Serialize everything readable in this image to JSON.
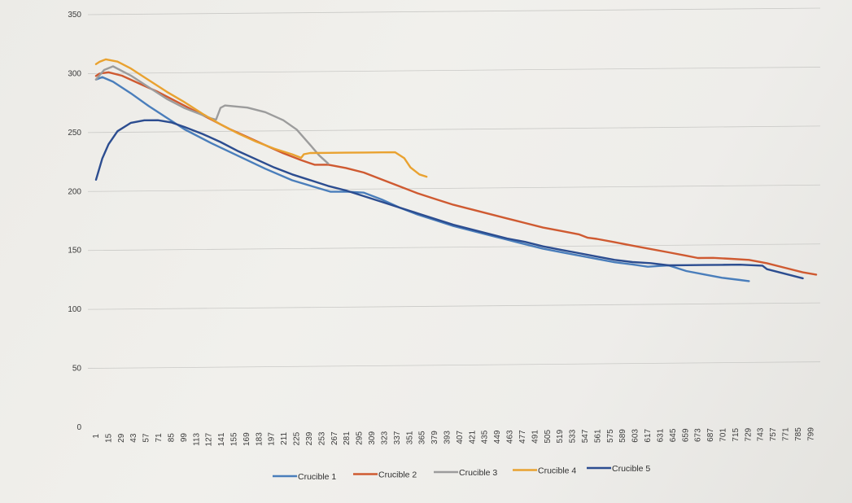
{
  "chart_data": {
    "type": "line",
    "title": "",
    "xlabel": "",
    "ylabel": "",
    "ylim": [
      0,
      350
    ],
    "y_ticks": [
      0,
      50,
      100,
      150,
      200,
      250,
      300,
      350
    ],
    "x_ticks": [
      1,
      15,
      29,
      43,
      57,
      71,
      85,
      99,
      113,
      127,
      141,
      155,
      169,
      183,
      197,
      211,
      225,
      239,
      253,
      267,
      281,
      295,
      309,
      323,
      337,
      351,
      365,
      379,
      393,
      407,
      421,
      435,
      449,
      463,
      477,
      491,
      505,
      519,
      533,
      547,
      561,
      575,
      589,
      603,
      617,
      631,
      645,
      659,
      673,
      687,
      701,
      715,
      729,
      743,
      757,
      771,
      785,
      799
    ],
    "grid": "horizontal",
    "legend_position": "bottom",
    "series": [
      {
        "name": "Crucible 1",
        "color": "#4a7ebb",
        "points": [
          [
            1,
            295
          ],
          [
            8,
            297
          ],
          [
            20,
            293
          ],
          [
            40,
            283
          ],
          [
            60,
            272
          ],
          [
            80,
            262
          ],
          [
            100,
            252
          ],
          [
            130,
            240
          ],
          [
            160,
            229
          ],
          [
            190,
            218
          ],
          [
            220,
            208
          ],
          [
            250,
            201
          ],
          [
            263,
            198
          ],
          [
            280,
            198
          ],
          [
            300,
            197
          ],
          [
            320,
            191
          ],
          [
            340,
            184
          ],
          [
            360,
            178
          ],
          [
            380,
            173
          ],
          [
            400,
            168
          ],
          [
            420,
            164
          ],
          [
            440,
            160
          ],
          [
            460,
            156
          ],
          [
            480,
            152
          ],
          [
            500,
            148
          ],
          [
            520,
            145
          ],
          [
            540,
            142
          ],
          [
            560,
            139
          ],
          [
            580,
            136
          ],
          [
            600,
            134
          ],
          [
            617,
            132
          ],
          [
            640,
            133
          ],
          [
            660,
            128
          ],
          [
            680,
            125
          ],
          [
            700,
            122
          ],
          [
            720,
            120
          ],
          [
            730,
            119
          ]
        ]
      },
      {
        "name": "Crucible 2",
        "color": "#cf5a31",
        "points": [
          [
            1,
            298
          ],
          [
            5,
            300
          ],
          [
            15,
            301
          ],
          [
            30,
            298
          ],
          [
            50,
            291
          ],
          [
            70,
            284
          ],
          [
            90,
            276
          ],
          [
            110,
            268
          ],
          [
            130,
            260
          ],
          [
            150,
            252
          ],
          [
            170,
            245
          ],
          [
            190,
            238
          ],
          [
            210,
            231
          ],
          [
            230,
            225
          ],
          [
            245,
            221
          ],
          [
            260,
            221
          ],
          [
            280,
            218
          ],
          [
            300,
            214
          ],
          [
            320,
            208
          ],
          [
            340,
            202
          ],
          [
            360,
            196
          ],
          [
            380,
            191
          ],
          [
            400,
            186
          ],
          [
            420,
            182
          ],
          [
            440,
            178
          ],
          [
            460,
            174
          ],
          [
            480,
            170
          ],
          [
            500,
            166
          ],
          [
            520,
            163
          ],
          [
            540,
            160
          ],
          [
            550,
            157
          ],
          [
            560,
            156
          ],
          [
            580,
            153
          ],
          [
            600,
            150
          ],
          [
            620,
            147
          ],
          [
            640,
            144
          ],
          [
            660,
            141
          ],
          [
            673,
            139
          ],
          [
            690,
            139
          ],
          [
            710,
            138
          ],
          [
            730,
            137
          ],
          [
            750,
            134
          ],
          [
            770,
            130
          ],
          [
            790,
            126
          ],
          [
            805,
            124
          ]
        ]
      },
      {
        "name": "Crucible 3",
        "color": "#9c9c9c",
        "points": [
          [
            1,
            295
          ],
          [
            10,
            303
          ],
          [
            20,
            306
          ],
          [
            40,
            298
          ],
          [
            60,
            288
          ],
          [
            80,
            278
          ],
          [
            100,
            270
          ],
          [
            130,
            261
          ],
          [
            135,
            260
          ],
          [
            140,
            270
          ],
          [
            145,
            272
          ],
          [
            170,
            270
          ],
          [
            190,
            266
          ],
          [
            210,
            259
          ],
          [
            225,
            251
          ],
          [
            240,
            238
          ],
          [
            250,
            229
          ],
          [
            260,
            222
          ]
        ]
      },
      {
        "name": "Crucible 4",
        "color": "#e9a230",
        "points": [
          [
            1,
            308
          ],
          [
            5,
            310
          ],
          [
            12,
            312
          ],
          [
            25,
            310
          ],
          [
            40,
            304
          ],
          [
            60,
            294
          ],
          [
            80,
            284
          ],
          [
            100,
            275
          ],
          [
            120,
            265
          ],
          [
            140,
            256
          ],
          [
            160,
            248
          ],
          [
            180,
            241
          ],
          [
            200,
            235
          ],
          [
            220,
            230
          ],
          [
            230,
            227
          ],
          [
            233,
            230
          ],
          [
            240,
            231
          ],
          [
            260,
            231
          ],
          [
            280,
            231
          ],
          [
            300,
            231
          ],
          [
            320,
            231
          ],
          [
            335,
            231
          ],
          [
            345,
            226
          ],
          [
            352,
            218
          ],
          [
            362,
            212
          ],
          [
            370,
            210
          ]
        ]
      },
      {
        "name": "Crucible 5",
        "color": "#2c4d90",
        "points": [
          [
            1,
            210
          ],
          [
            8,
            228
          ],
          [
            15,
            240
          ],
          [
            25,
            251
          ],
          [
            40,
            258
          ],
          [
            55,
            260
          ],
          [
            70,
            260
          ],
          [
            85,
            258
          ],
          [
            100,
            254
          ],
          [
            120,
            248
          ],
          [
            140,
            241
          ],
          [
            160,
            233
          ],
          [
            180,
            226
          ],
          [
            200,
            219
          ],
          [
            220,
            213
          ],
          [
            240,
            208
          ],
          [
            260,
            203
          ],
          [
            280,
            199
          ],
          [
            300,
            194
          ],
          [
            320,
            189
          ],
          [
            340,
            184
          ],
          [
            360,
            179
          ],
          [
            380,
            174
          ],
          [
            400,
            169
          ],
          [
            420,
            165
          ],
          [
            440,
            161
          ],
          [
            460,
            157
          ],
          [
            480,
            154
          ],
          [
            500,
            150
          ],
          [
            520,
            147
          ],
          [
            540,
            144
          ],
          [
            560,
            141
          ],
          [
            580,
            138
          ],
          [
            600,
            136
          ],
          [
            620,
            135
          ],
          [
            640,
            133
          ],
          [
            660,
            133
          ],
          [
            680,
            133
          ],
          [
            700,
            133
          ],
          [
            720,
            133
          ],
          [
            745,
            132
          ],
          [
            750,
            129
          ],
          [
            770,
            125
          ],
          [
            790,
            121
          ]
        ]
      }
    ]
  }
}
